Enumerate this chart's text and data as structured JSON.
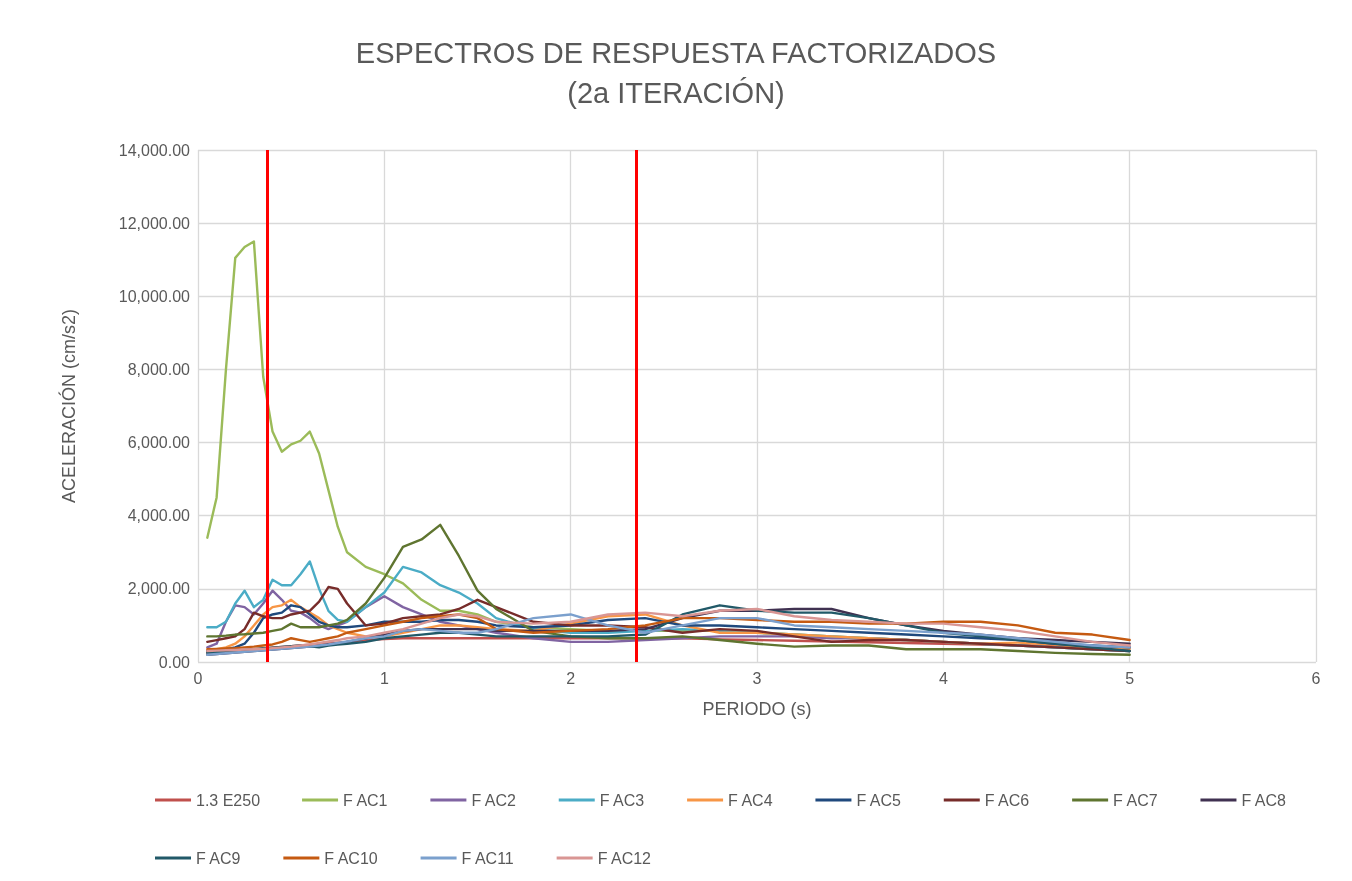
{
  "chart_data": {
    "type": "line",
    "title": "ESPECTROS DE RESPUESTA FACTORIZADOS\n(2a ITERACIÓN)",
    "xlabel": "PERIODO (s)",
    "ylabel": "ACELERACIÓN (cm/s2)",
    "x": [
      0.05,
      0.1,
      0.15,
      0.2,
      0.25,
      0.3,
      0.35,
      0.4,
      0.45,
      0.5,
      0.55,
      0.6,
      0.65,
      0.7,
      0.75,
      0.8,
      0.9,
      1.0,
      1.1,
      1.2,
      1.3,
      1.4,
      1.5,
      1.6,
      1.8,
      2.0,
      2.2,
      2.4,
      2.6,
      2.8,
      3.0,
      3.2,
      3.4,
      3.6,
      3.8,
      4.0,
      4.2,
      4.4,
      4.6,
      4.8,
      5.0
    ],
    "series": [
      {
        "name": "1.3 E250",
        "color": "#c0504d",
        "values": [
          250,
          270,
          290,
          310,
          330,
          350,
          370,
          390,
          410,
          430,
          450,
          470,
          490,
          510,
          530,
          550,
          600,
          630,
          650,
          650,
          650,
          650,
          650,
          650,
          650,
          650,
          650,
          650,
          650,
          620,
          600,
          580,
          560,
          540,
          520,
          500,
          480,
          460,
          440,
          420,
          400
        ]
      },
      {
        "name": "F AC1",
        "color": "#9bbb59",
        "values": [
          3400,
          4500,
          8000,
          11050,
          11350,
          11500,
          7800,
          6300,
          5750,
          5950,
          6050,
          6300,
          5700,
          4700,
          3700,
          3000,
          2600,
          2400,
          2150,
          1700,
          1400,
          1400,
          1300,
          1100,
          950,
          900,
          850,
          850,
          850,
          850,
          800,
          750,
          700,
          650,
          600,
          550,
          500,
          450,
          400,
          350,
          300
        ]
      },
      {
        "name": "F AC2",
        "color": "#8064a2",
        "values": [
          400,
          500,
          1100,
          1550,
          1500,
          1300,
          1600,
          1950,
          1700,
          1400,
          1350,
          1200,
          1000,
          900,
          1000,
          1100,
          1500,
          1800,
          1500,
          1300,
          1100,
          1000,
          900,
          800,
          650,
          550,
          550,
          600,
          650,
          700,
          700,
          700,
          650,
          650,
          600,
          550,
          500,
          450,
          400,
          350,
          300
        ]
      },
      {
        "name": "F AC3",
        "color": "#4bacc6",
        "values": [
          950,
          950,
          1100,
          1600,
          1950,
          1500,
          1700,
          2250,
          2100,
          2100,
          2400,
          2750,
          2000,
          1400,
          1150,
          1100,
          1500,
          1900,
          2600,
          2450,
          2100,
          1900,
          1600,
          1200,
          900,
          800,
          800,
          850,
          900,
          850,
          800,
          750,
          700,
          650,
          600,
          550,
          500,
          450,
          400,
          350,
          300
        ]
      },
      {
        "name": "F AC4",
        "color": "#f79646",
        "values": [
          300,
          350,
          400,
          500,
          700,
          1000,
          1300,
          1500,
          1550,
          1700,
          1500,
          1350,
          1200,
          1000,
          900,
          800,
          700,
          700,
          800,
          900,
          1000,
          1000,
          950,
          900,
          850,
          1050,
          1250,
          1300,
          1000,
          800,
          800,
          750,
          700,
          650,
          600,
          550,
          500,
          530,
          480,
          380,
          360
        ]
      },
      {
        "name": "F AC5",
        "color": "#1f497d",
        "values": [
          300,
          320,
          350,
          400,
          500,
          800,
          1200,
          1300,
          1350,
          1550,
          1500,
          1300,
          1100,
          1000,
          950,
          950,
          1000,
          1100,
          1100,
          1100,
          1150,
          1150,
          1100,
          1000,
          950,
          1000,
          1150,
          1200,
          1000,
          1000,
          950,
          900,
          850,
          800,
          750,
          700,
          650,
          600,
          500,
          450,
          400
        ]
      },
      {
        "name": "F AC6",
        "color": "#772c2a",
        "values": [
          550,
          600,
          650,
          700,
          900,
          1350,
          1250,
          1200,
          1200,
          1300,
          1350,
          1400,
          1650,
          2050,
          2000,
          1600,
          1000,
          1050,
          1200,
          1250,
          1300,
          1450,
          1700,
          1500,
          1100,
          1000,
          1000,
          950,
          800,
          900,
          850,
          700,
          550,
          600,
          600,
          550,
          500,
          450,
          400,
          350,
          300
        ]
      },
      {
        "name": "F AC7",
        "color": "#5f7530",
        "values": [
          700,
          700,
          720,
          750,
          760,
          780,
          800,
          850,
          900,
          1050,
          950,
          950,
          950,
          1000,
          1050,
          1150,
          1600,
          2300,
          3150,
          3350,
          3750,
          2900,
          1950,
          1450,
          850,
          700,
          650,
          650,
          700,
          600,
          500,
          420,
          450,
          450,
          350,
          350,
          350,
          300,
          250,
          220,
          200
        ]
      },
      {
        "name": "F AC8",
        "color": "#403151",
        "values": [
          200,
          220,
          240,
          260,
          280,
          300,
          320,
          340,
          360,
          380,
          400,
          420,
          450,
          480,
          500,
          550,
          650,
          750,
          850,
          900,
          900,
          900,
          900,
          850,
          850,
          850,
          850,
          900,
          1200,
          1400,
          1400,
          1450,
          1450,
          1200,
          1000,
          850,
          750,
          650,
          600,
          550,
          500
        ]
      },
      {
        "name": "F AC9",
        "color": "#215968",
        "values": [
          250,
          270,
          290,
          310,
          330,
          350,
          370,
          390,
          410,
          430,
          450,
          430,
          400,
          450,
          480,
          500,
          550,
          650,
          700,
          750,
          800,
          800,
          750,
          700,
          700,
          700,
          700,
          750,
          1300,
          1550,
          1400,
          1350,
          1350,
          1200,
          1000,
          800,
          700,
          600,
          500,
          400,
          300
        ]
      },
      {
        "name": "F AC10",
        "color": "#c55a11",
        "values": [
          350,
          360,
          370,
          380,
          400,
          420,
          450,
          480,
          550,
          650,
          600,
          550,
          600,
          650,
          700,
          800,
          900,
          1000,
          1100,
          1200,
          1250,
          1300,
          1200,
          900,
          800,
          850,
          900,
          1000,
          1200,
          1200,
          1150,
          1100,
          1100,
          1050,
          1050,
          1100,
          1100,
          1000,
          800,
          750,
          600
        ]
      },
      {
        "name": "F AC11",
        "color": "#7ba0cd",
        "values": [
          200,
          220,
          240,
          260,
          280,
          300,
          320,
          340,
          360,
          380,
          400,
          420,
          450,
          480,
          520,
          560,
          650,
          700,
          850,
          900,
          850,
          800,
          800,
          900,
          1200,
          1300,
          1000,
          800,
          1000,
          1200,
          1200,
          1000,
          950,
          900,
          850,
          800,
          750,
          650,
          550,
          450,
          400
        ]
      },
      {
        "name": "F AC12",
        "color": "#d99694",
        "values": [
          300,
          310,
          320,
          330,
          340,
          350,
          360,
          380,
          400,
          420,
          450,
          480,
          520,
          560,
          600,
          650,
          700,
          800,
          900,
          1050,
          1200,
          1300,
          1250,
          1100,
          1050,
          1100,
          1300,
          1350,
          1250,
          1400,
          1450,
          1250,
          1150,
          1100,
          1050,
          1050,
          950,
          850,
          700,
          550,
          450
        ]
      }
    ],
    "ref_lines": [
      {
        "axis": "x",
        "value": 0.37,
        "color": "#ff0000"
      },
      {
        "axis": "x",
        "value": 2.35,
        "color": "#ff0000"
      }
    ],
    "xlim": [
      0,
      6
    ],
    "xticks": [
      0,
      1,
      2,
      3,
      4,
      5,
      6
    ],
    "ylim": [
      0,
      14000
    ],
    "yticks": [
      {
        "value": 0,
        "label": "0.00"
      },
      {
        "value": 2000,
        "label": "2,000.00"
      },
      {
        "value": 4000,
        "label": "4,000.00"
      },
      {
        "value": 6000,
        "label": "6,000.00"
      },
      {
        "value": 8000,
        "label": "8,000.00"
      },
      {
        "value": 10000,
        "label": "10,000.00"
      },
      {
        "value": 12000,
        "label": "12,000.00"
      },
      {
        "value": 14000,
        "label": "14,000.00"
      }
    ],
    "grid": true,
    "legend": "bottom",
    "marker": "none",
    "line_style": "solid"
  }
}
